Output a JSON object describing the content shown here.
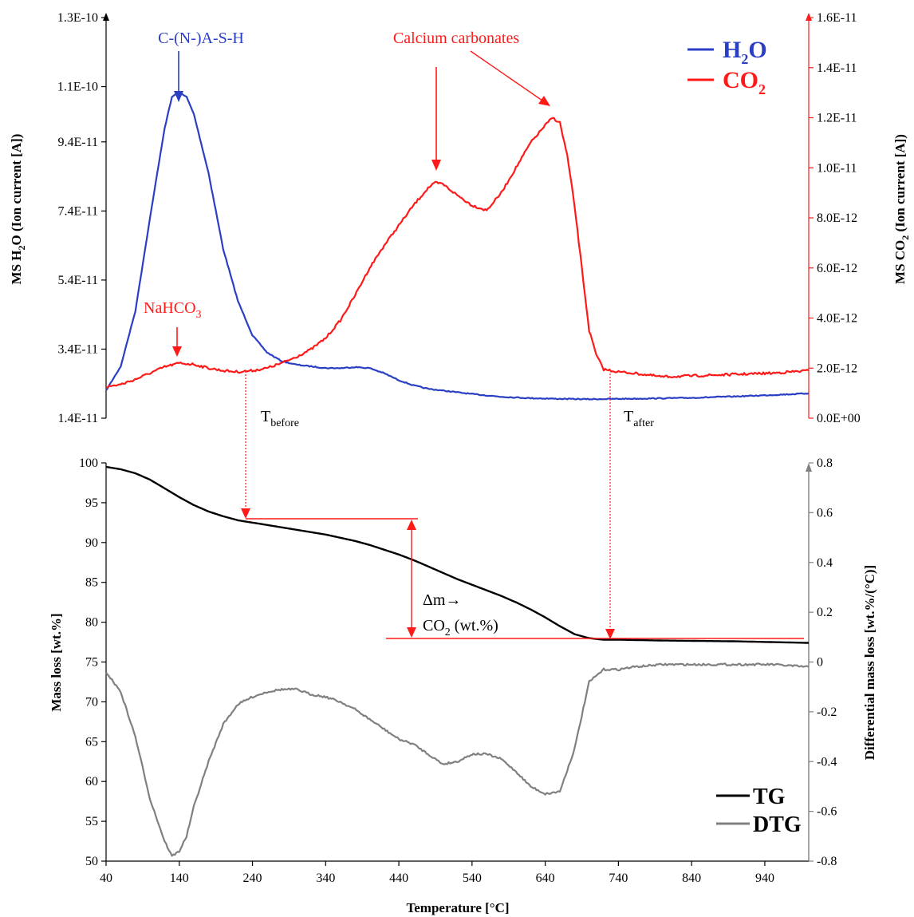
{
  "chart_data": [
    {
      "type": "line",
      "panel": "top",
      "ylabel_left": "MS H2O (Ion current [A])",
      "ylabel_left_main": "MS H",
      "ylabel_left_sub": "2",
      "ylabel_left_rest": "O (Ion current [A])",
      "ylabel_right": "MS CO2 (Ion current [A])",
      "ylabel_right_main": "MS CO",
      "ylabel_right_sub": "2",
      "ylabel_right_rest": " (Ion current [A])",
      "xlim": [
        40,
        1000
      ],
      "ylim_left": [
        1.4e-11,
        1.3e-10
      ],
      "ylim_right": [
        0,
        1.6e-11
      ],
      "left_ticks": [
        "1.4E-11",
        "3.4E-11",
        "5.4E-11",
        "7.4E-11",
        "9.4E-11",
        "1.1E-10",
        "1.3E-10"
      ],
      "left_tick_values": [
        1.4e-11,
        3.4e-11,
        5.4e-11,
        7.4e-11,
        9.4e-11,
        1.1e-10,
        1.3e-10
      ],
      "right_ticks": [
        "0.0E+00",
        "2.0E-12",
        "4.0E-12",
        "6.0E-12",
        "8.0E-12",
        "1.0E-11",
        "1.2E-11",
        "1.4E-11",
        "1.6E-11"
      ],
      "right_tick_values": [
        0,
        2e-12,
        4e-12,
        6e-12,
        8e-12,
        1e-11,
        1.2e-11,
        1.4e-11,
        1.6e-11
      ],
      "series": [
        {
          "name": "H2O",
          "axis": "left",
          "color": "#2B3FC4",
          "x": [
            40,
            60,
            80,
            100,
            120,
            130,
            140,
            150,
            160,
            180,
            200,
            220,
            240,
            260,
            280,
            300,
            320,
            340,
            360,
            380,
            400,
            420,
            440,
            460,
            480,
            500,
            540,
            580,
            620,
            660,
            700,
            740,
            780,
            840,
            900,
            960,
            1000
          ],
          "y": [
            2.2e-11,
            2.9e-11,
            4.5e-11,
            7.2e-11,
            9.8e-11,
            1.07e-10,
            1.085e-10,
            1.07e-10,
            1.02e-10,
            8.5e-11,
            6.3e-11,
            4.8e-11,
            3.8e-11,
            3.3e-11,
            3.05e-11,
            2.95e-11,
            2.9e-11,
            2.85e-11,
            2.85e-11,
            2.88e-11,
            2.85e-11,
            2.7e-11,
            2.5e-11,
            2.35e-11,
            2.25e-11,
            2.2e-11,
            2.1e-11,
            2.02e-11,
            1.98e-11,
            1.96e-11,
            1.95e-11,
            1.96e-11,
            1.97e-11,
            1.99e-11,
            2.03e-11,
            2.08e-11,
            2.12e-11
          ]
        },
        {
          "name": "CO2",
          "axis": "right",
          "color": "#FF1A1A",
          "x": [
            40,
            60,
            80,
            100,
            120,
            140,
            160,
            180,
            200,
            220,
            240,
            260,
            280,
            300,
            320,
            340,
            360,
            380,
            400,
            420,
            440,
            460,
            480,
            490,
            500,
            520,
            540,
            560,
            580,
            600,
            620,
            640,
            650,
            660,
            670,
            680,
            690,
            700,
            710,
            720,
            740,
            760,
            800,
            850,
            900,
            950,
            1000
          ],
          "y": [
            1.25e-12,
            1.35e-12,
            1.55e-12,
            1.8e-12,
            2.05e-12,
            2.2e-12,
            2.15e-12,
            2e-12,
            1.9e-12,
            1.85e-12,
            1.9e-12,
            2e-12,
            2.2e-12,
            2.45e-12,
            2.75e-12,
            3.2e-12,
            3.9e-12,
            4.9e-12,
            6e-12,
            6.9e-12,
            7.7e-12,
            8.5e-12,
            9.2e-12,
            9.4e-12,
            9.35e-12,
            8.9e-12,
            8.5e-12,
            8.3e-12,
            9e-12,
            1e-11,
            1.1e-11,
            1.17e-11,
            1.2e-11,
            1.18e-11,
            1.05e-11,
            8.5e-12,
            6e-12,
            3.5e-12,
            2.5e-12,
            1.95e-12,
            1.85e-12,
            1.8e-12,
            1.65e-12,
            1.7e-12,
            1.75e-12,
            1.8e-12,
            1.9e-12
          ]
        }
      ],
      "legend": {
        "h2o_main": "H",
        "h2o_sub": "2",
        "h2o_rest": "O",
        "h2o_color": "#2B3FC4",
        "co2_main": "CO",
        "co2_sub": "2",
        "co2_color": "#FF1A1A",
        "position": "top-right"
      },
      "annotations": {
        "cnash": "C-(N-)A-S-H",
        "carbonates": "Calcium carbonates",
        "nahco3_main": "NaHCO",
        "nahco3_sub": "3",
        "tbefore_main": "T",
        "tbefore_sub": "before",
        "tafter_main": "T",
        "tafter_sub": "after"
      }
    },
    {
      "type": "line",
      "panel": "bottom",
      "xlabel": "Temperature [°C]",
      "ylabel_left": "Mass loss [wt.%]",
      "ylabel_right": "Differential mass loss [wt.%/(°C)]",
      "xlim": [
        40,
        1000
      ],
      "ylim_left": [
        50,
        100
      ],
      "ylim_right": [
        -0.8,
        0.8
      ],
      "x_ticks": [
        "40",
        "140",
        "240",
        "340",
        "440",
        "540",
        "640",
        "740",
        "840",
        "940"
      ],
      "x_tick_values": [
        40,
        140,
        240,
        340,
        440,
        540,
        640,
        740,
        840,
        940
      ],
      "left_ticks": [
        "50",
        "55",
        "60",
        "65",
        "70",
        "75",
        "80",
        "85",
        "90",
        "95",
        "100"
      ],
      "left_tick_values": [
        50,
        55,
        60,
        65,
        70,
        75,
        80,
        85,
        90,
        95,
        100
      ],
      "right_ticks": [
        "-0.8",
        "-0.6",
        "-0.4",
        "-0.2",
        "0",
        "0.2",
        "0.4",
        "0.6",
        "0.8"
      ],
      "right_tick_values": [
        -0.8,
        -0.6,
        -0.4,
        -0.2,
        0,
        0.2,
        0.4,
        0.6,
        0.8
      ],
      "series": [
        {
          "name": "TG",
          "axis": "left",
          "color": "#000000",
          "x": [
            40,
            60,
            80,
            100,
            120,
            140,
            160,
            180,
            200,
            220,
            240,
            260,
            280,
            300,
            320,
            340,
            360,
            380,
            400,
            420,
            440,
            460,
            480,
            500,
            520,
            540,
            560,
            580,
            600,
            620,
            640,
            660,
            680,
            700,
            720,
            740,
            800,
            900,
            1000
          ],
          "y": [
            99.5,
            99.2,
            98.7,
            97.9,
            96.8,
            95.7,
            94.7,
            93.9,
            93.3,
            92.8,
            92.5,
            92.2,
            91.9,
            91.6,
            91.3,
            91.0,
            90.6,
            90.2,
            89.7,
            89.1,
            88.5,
            87.8,
            87.0,
            86.2,
            85.4,
            84.7,
            84.0,
            83.3,
            82.5,
            81.6,
            80.6,
            79.5,
            78.5,
            78.0,
            77.8,
            77.8,
            77.7,
            77.6,
            77.4
          ]
        },
        {
          "name": "DTG",
          "axis": "right",
          "color": "#808080",
          "x": [
            40,
            60,
            80,
            100,
            120,
            130,
            140,
            150,
            160,
            180,
            200,
            220,
            240,
            260,
            280,
            300,
            320,
            340,
            360,
            380,
            400,
            420,
            440,
            460,
            480,
            500,
            520,
            540,
            560,
            580,
            600,
            620,
            640,
            660,
            680,
            700,
            720,
            740,
            760,
            800,
            850,
            900,
            950,
            1000
          ],
          "y": [
            -0.04,
            -0.12,
            -0.3,
            -0.55,
            -0.72,
            -0.78,
            -0.76,
            -0.7,
            -0.58,
            -0.4,
            -0.25,
            -0.17,
            -0.14,
            -0.12,
            -0.11,
            -0.11,
            -0.13,
            -0.14,
            -0.16,
            -0.19,
            -0.23,
            -0.27,
            -0.31,
            -0.33,
            -0.37,
            -0.41,
            -0.4,
            -0.37,
            -0.37,
            -0.39,
            -0.44,
            -0.5,
            -0.53,
            -0.52,
            -0.35,
            -0.08,
            -0.03,
            -0.03,
            -0.02,
            -0.01,
            -0.01,
            -0.01,
            -0.01,
            -0.02
          ]
        }
      ],
      "legend": {
        "tg": "TG",
        "dtg": "DTG",
        "position": "bottom-right"
      },
      "annotations": {
        "delta_m": "Δm→",
        "co2_main": "CO",
        "co2_sub": "2",
        "co2_rest": " (wt.%)"
      }
    }
  ]
}
